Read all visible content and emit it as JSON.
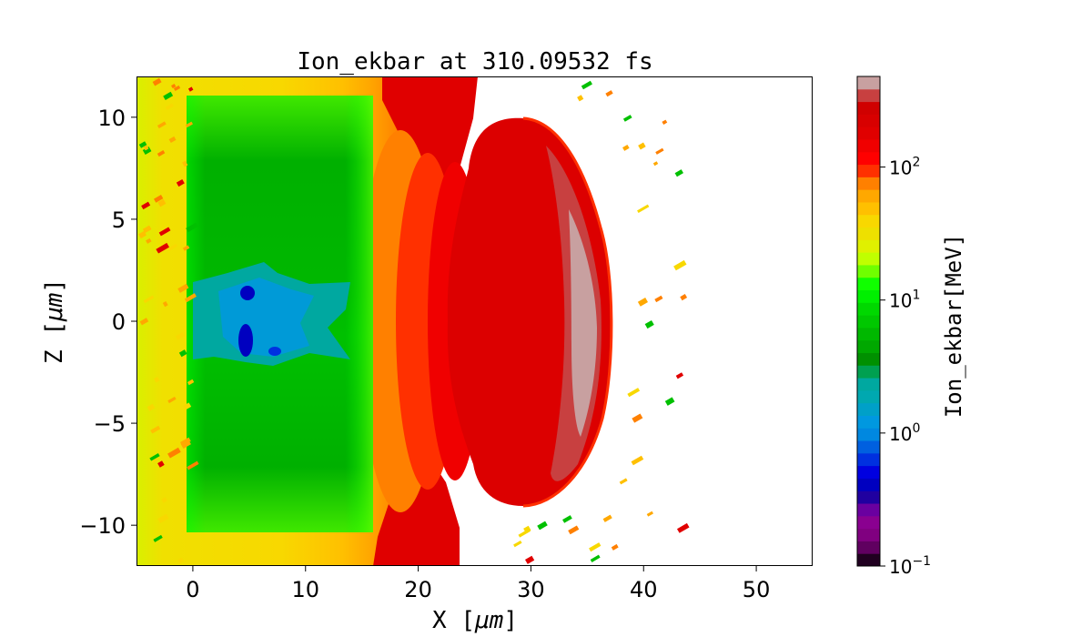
{
  "chart_data": {
    "type": "heatmap",
    "title": "Ion_ekbar at 310.09532 fs",
    "xlabel_prefix": "X  [",
    "xlabel_unit": "μm",
    "xlabel_suffix": "]",
    "ylabel_prefix": "Z  [",
    "ylabel_unit": "μm",
    "ylabel_suffix": "]",
    "xlim": [
      -5,
      55
    ],
    "ylim": [
      -12,
      12
    ],
    "xticks": [
      0,
      10,
      20,
      30,
      40,
      50
    ],
    "xtick_labels": [
      "0",
      "10",
      "20",
      "30",
      "40",
      "50"
    ],
    "yticks": [
      -10,
      -5,
      0,
      5,
      10
    ],
    "ytick_labels": [
      "−10",
      "−5",
      "0",
      "5",
      "10"
    ],
    "grid": false,
    "colorbar": {
      "label": "Ion_ekbar[MeV]",
      "scale": "log",
      "range": [
        0.1,
        480
      ],
      "ticks": [
        0.1,
        1,
        10,
        100
      ],
      "tick_bases": [
        "10",
        "10",
        "10",
        "10"
      ],
      "tick_exponents": [
        "−1",
        "0",
        "1",
        "2"
      ],
      "levels_colors_bottom_to_top": [
        "#200020",
        "#600060",
        "#800080",
        "#8a0090",
        "#6a00a0",
        "#2000a0",
        "#0000c0",
        "#0000e0",
        "#0030e0",
        "#0060e0",
        "#0088e0",
        "#0098e0",
        "#00a0c8",
        "#00a8b0",
        "#00a8a0",
        "#00a050",
        "#009000",
        "#00a800",
        "#00b800",
        "#00c800",
        "#00d800",
        "#00f000",
        "#10ff00",
        "#70ff00",
        "#c0ff00",
        "#e0f000",
        "#eee000",
        "#f8d800",
        "#ffc000",
        "#ffa800",
        "#ff8000",
        "#ff3000",
        "#ff0000",
        "#f00000",
        "#e00000",
        "#d80000",
        "#d00000",
        "#c84040",
        "#c8a0a0"
      ]
    },
    "field_features": {
      "min_value_MeV": 0.3,
      "max_value_MeV": 480
    }
  }
}
